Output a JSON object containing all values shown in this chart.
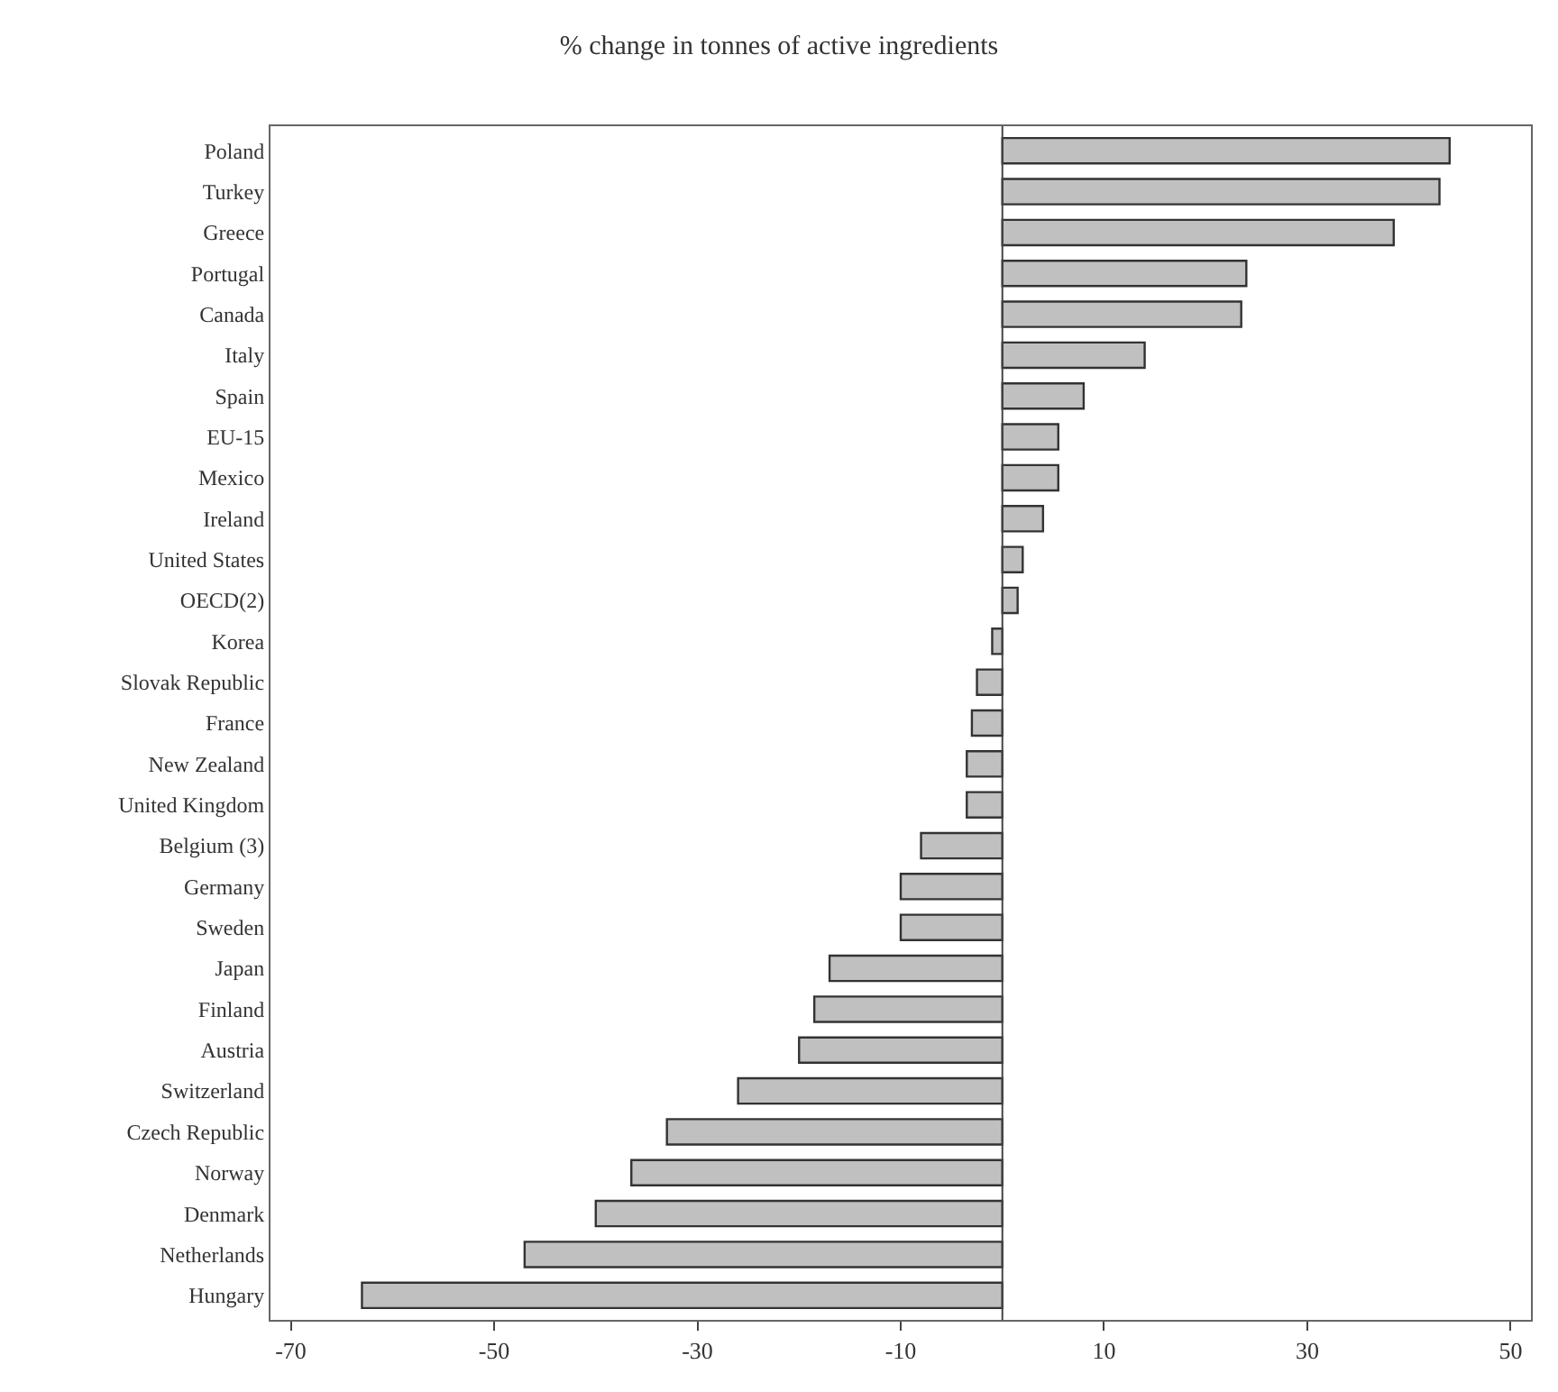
{
  "chart_data": {
    "type": "bar",
    "orientation": "horizontal",
    "title": "% change in tonnes of active ingredients",
    "categories": [
      "Poland",
      "Turkey",
      "Greece",
      "Portugal",
      "Canada",
      "Italy",
      "Spain",
      "EU-15",
      "Mexico",
      "Ireland",
      "United States",
      "OECD(2)",
      "Korea",
      "Slovak Republic",
      "France",
      "New Zealand",
      "United Kingdom",
      "Belgium (3)",
      "Germany",
      "Sweden",
      "Japan",
      "Finland",
      "Austria",
      "Switzerland",
      "Czech Republic",
      "Norway",
      "Denmark",
      "Netherlands",
      "Hungary"
    ],
    "values": [
      44,
      43,
      38.5,
      24,
      23.5,
      14,
      8,
      5.5,
      5.5,
      4,
      2,
      1.5,
      -1,
      -2.5,
      -3,
      -3.5,
      -3.5,
      -8,
      -10,
      -10,
      -17,
      -18.5,
      -20,
      -26,
      -33,
      -36.5,
      -40,
      -47,
      -63
    ],
    "color": "#c0c0c0",
    "xlim": [
      -72,
      52
    ],
    "xticks": [
      -70,
      -50,
      -30,
      -10,
      10,
      30,
      50
    ]
  }
}
